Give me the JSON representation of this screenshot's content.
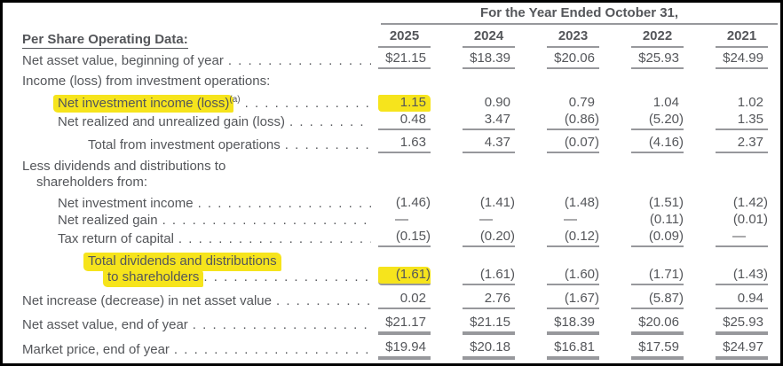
{
  "header": {
    "period_label": "For the Year Ended October 31,",
    "left_heading": "Per Share Operating Data:",
    "years": [
      "2025",
      "2024",
      "2023",
      "2022",
      "2021"
    ]
  },
  "rows": [
    {
      "label": "Net asset value, beginning of year",
      "values": [
        "$21.15",
        "$18.39",
        "$20.06",
        "$25.93",
        "$24.99"
      ]
    },
    {
      "label": "Income (loss) from investment operations:"
    },
    {
      "label": "Net investment income (loss)",
      "footnote": "(a)",
      "values": [
        "1.15",
        "0.90",
        "0.79",
        "1.04",
        "1.02"
      ]
    },
    {
      "label": "Net realized and unrealized gain (loss)",
      "values": [
        "0.48",
        "3.47",
        "(0.86)",
        "(5.20)",
        "1.35"
      ]
    },
    {
      "label": "Total from investment operations",
      "values": [
        "1.63",
        "4.37",
        "(0.07)",
        "(4.16)",
        "2.37"
      ]
    },
    {
      "label_line1": "Less dividends and distributions to",
      "label_line2": "shareholders from:"
    },
    {
      "label": "Net investment income",
      "values": [
        "(1.46)",
        "(1.41)",
        "(1.48)",
        "(1.51)",
        "(1.42)"
      ]
    },
    {
      "label": "Net realized gain",
      "values": [
        "—",
        "—",
        "—",
        "(0.11)",
        "(0.01)"
      ]
    },
    {
      "label": "Tax return of capital",
      "values": [
        "(0.15)",
        "(0.20)",
        "(0.12)",
        "(0.09)",
        "—"
      ]
    },
    {
      "label_line1": "Total dividends and distributions",
      "label_line2": "to shareholders",
      "values": [
        "(1.61)",
        "(1.61)",
        "(1.60)",
        "(1.71)",
        "(1.43)"
      ]
    },
    {
      "label": "Net increase (decrease) in net asset value",
      "values": [
        "0.02",
        "2.76",
        "(1.67)",
        "(5.87)",
        "0.94"
      ]
    },
    {
      "label": "Net asset value, end of year",
      "values": [
        "$21.17",
        "$21.15",
        "$18.39",
        "$20.06",
        "$25.93"
      ]
    },
    {
      "label": "Market price, end of year",
      "values": [
        "$19.94",
        "$20.18",
        "$16.81",
        "$17.59",
        "$24.97"
      ]
    }
  ],
  "highlights": {
    "highlighted_row_labels": [
      "Net investment income (loss)",
      "Total dividends and distributions to shareholders"
    ],
    "highlighted_values": [
      "1.15 (2025)",
      "(1.61) (2025)"
    ]
  },
  "colors": {
    "text": "#54565a",
    "rule_lines": "#97989c",
    "highlighter": "#f6e41c",
    "border": "#000000",
    "background": "#ffffff"
  }
}
